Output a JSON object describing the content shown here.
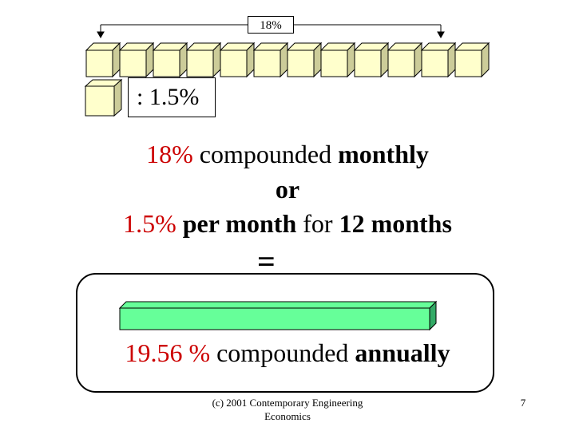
{
  "diagram": {
    "rate_label": "18%",
    "monthly_label": ": 1.5%",
    "month_cubes": 12,
    "cube_color": "#ffffcc",
    "bar_color": "#66ff99"
  },
  "headline": {
    "line1": {
      "rate": "18%",
      "text": " compounded ",
      "emph": "monthly"
    },
    "line2": "or",
    "line3": {
      "rate": "1.5%",
      "text1": " per month",
      "text2": " for ",
      "emph": "12 months"
    }
  },
  "equals": "=",
  "result": {
    "rate": "19.56 %",
    "text": " compounded ",
    "emph": "annually"
  },
  "footer": {
    "credit_line1": "(c) 2001  Contemporary Engineering",
    "credit_line2": "Economics",
    "page_number": "7"
  }
}
